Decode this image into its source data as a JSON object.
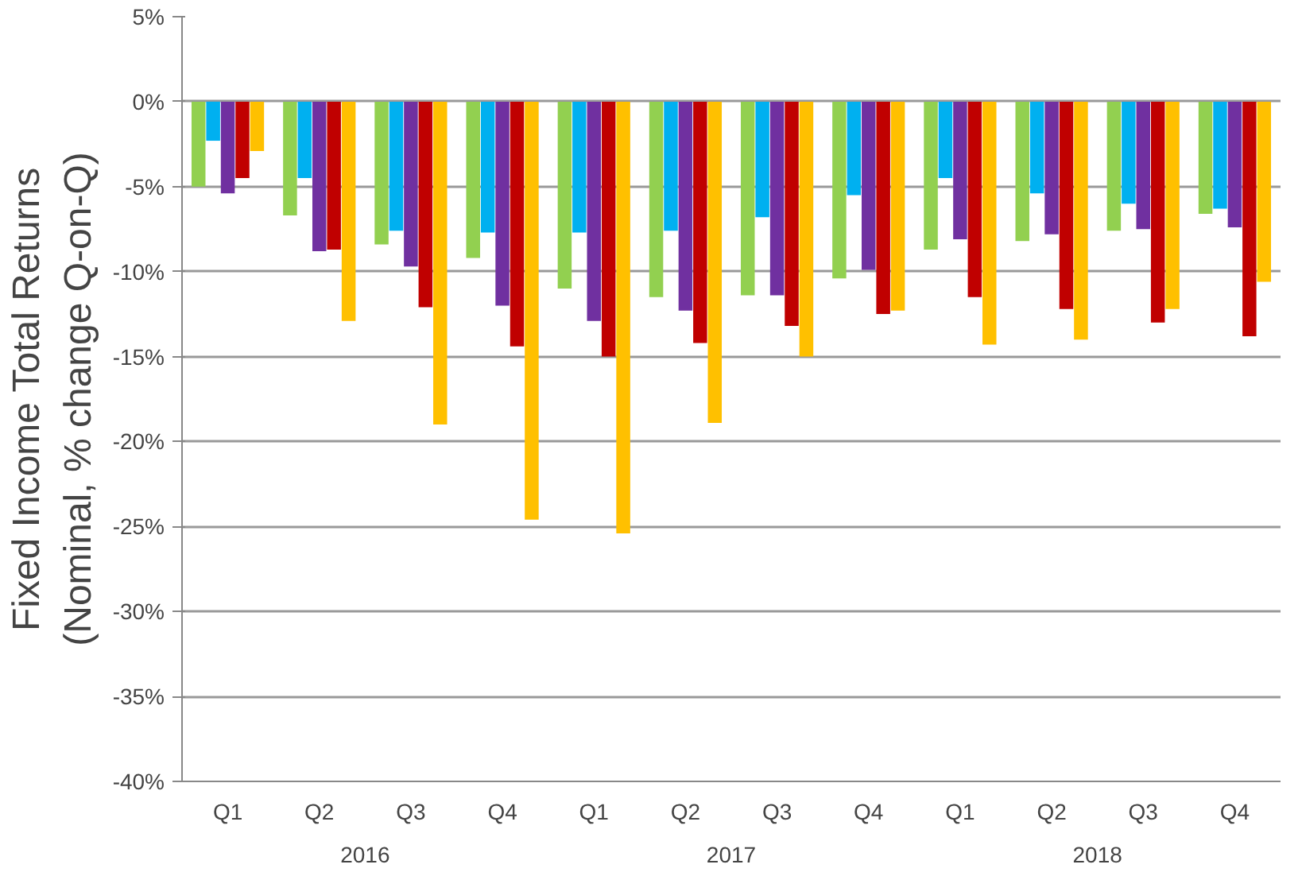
{
  "chart_data": {
    "type": "bar",
    "ylabel": "Fixed Income Total Returns\n(Nominal, % change Q-on-Q)",
    "categories": [
      "Q1",
      "Q2",
      "Q3",
      "Q4",
      "Q1",
      "Q2",
      "Q3",
      "Q4",
      "Q1",
      "Q2",
      "Q3",
      "Q4"
    ],
    "annotations": [
      "2016",
      "2017",
      "2018"
    ],
    "series": [
      {
        "color": "#92d050",
        "values": [
          -5.0,
          -6.7,
          -8.4,
          -9.2,
          -11.0,
          -11.5,
          -11.4,
          -10.4,
          -8.7,
          -8.2,
          -7.6,
          -6.6
        ]
      },
      {
        "color": "#00b0f0",
        "values": [
          -2.3,
          -4.5,
          -7.6,
          -7.7,
          -7.7,
          -7.6,
          -6.8,
          -5.5,
          -4.5,
          -5.4,
          -6.0,
          -6.3
        ]
      },
      {
        "color": "#7030a0",
        "values": [
          -5.4,
          -8.8,
          -9.7,
          -12.0,
          -12.9,
          -12.3,
          -11.4,
          -9.9,
          -8.1,
          -7.8,
          -7.5,
          -7.4
        ]
      },
      {
        "color": "#c00000",
        "values": [
          -4.5,
          -8.7,
          -12.1,
          -14.4,
          -15.0,
          -14.2,
          -13.2,
          -12.5,
          -11.5,
          -12.2,
          -13.0,
          -13.8
        ]
      },
      {
        "color": "#ffc000",
        "values": [
          -2.9,
          -12.9,
          -19.0,
          -24.6,
          -25.4,
          -18.9,
          -15.0,
          -12.3,
          -14.3,
          -14.0,
          -12.2,
          -10.6
        ]
      }
    ],
    "ylim": [
      -40,
      5
    ],
    "yticks": [
      {
        "value": -40,
        "label": "-40%"
      },
      {
        "value": -35,
        "label": "-35%"
      },
      {
        "value": -30,
        "label": "-30%"
      },
      {
        "value": -25,
        "label": "-25%"
      },
      {
        "value": -20,
        "label": "-20%"
      },
      {
        "value": -15,
        "label": "-15%"
      },
      {
        "value": -10,
        "label": "-10%"
      },
      {
        "value": -5,
        "label": "-5%"
      },
      {
        "value": 0,
        "label": "0%"
      },
      {
        "value": 5,
        "label": "5%"
      }
    ],
    "grid": "y"
  }
}
